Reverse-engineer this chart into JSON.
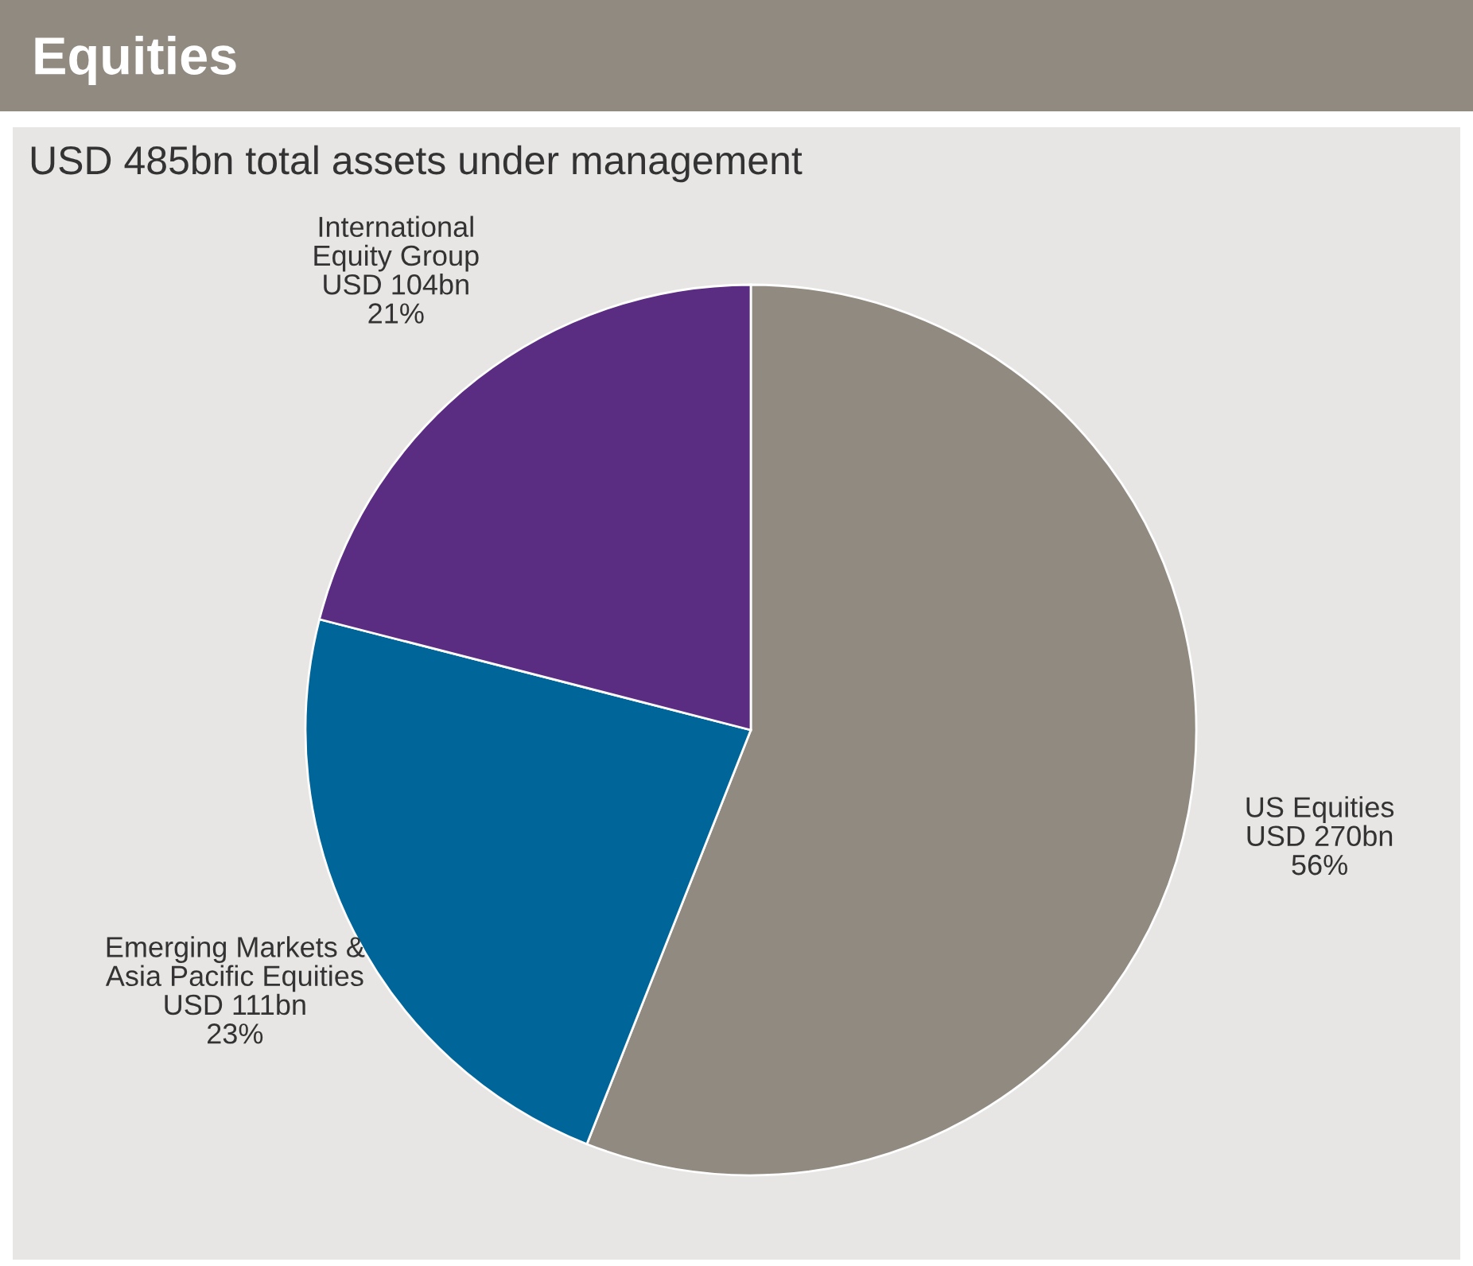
{
  "chart_data": {
    "type": "pie",
    "title": "Equities",
    "subtitle": "USD 485bn total assets under management",
    "categories": [
      "US Equities",
      "Emerging Markets &\nAsia Pacific Equities",
      "International\nEquity Group"
    ],
    "values": [
      56,
      23,
      21
    ],
    "value_labels": [
      "56%",
      "23%",
      "21%"
    ],
    "annotations": [
      "USD 270bn",
      "USD 111bn",
      "USD 104bn"
    ],
    "colors": [
      "#918a80",
      "#006699",
      "#5a2d82"
    ]
  }
}
